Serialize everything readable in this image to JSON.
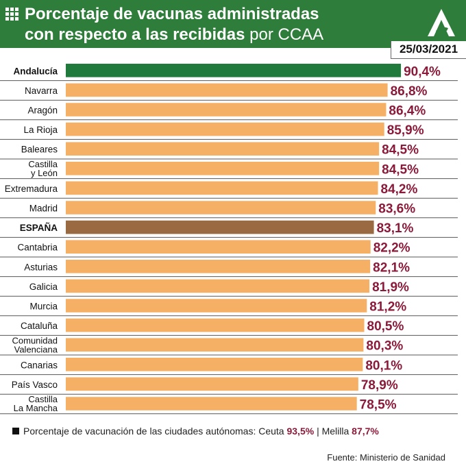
{
  "header": {
    "title_line1": "Porcentaje de vacunas administradas",
    "title_line2_bold": "con respecto a las recibidas",
    "title_line2_plain": "por CCAA",
    "date": "25/03/2021",
    "grid_icon": "grid-icon",
    "logo_icon": "junta-andalucia-logo-icon",
    "background_color": "#2e7d3a"
  },
  "chart_data": {
    "type": "bar",
    "orientation": "horizontal",
    "categories": [
      "Andalucía",
      "Navarra",
      "Aragón",
      "La Rioja",
      "Baleares",
      "Castilla y León",
      "Extremadura",
      "Madrid",
      "ESPAÑA",
      "Cantabria",
      "Asturias",
      "Galicia",
      "Murcia",
      "Cataluña",
      "Comunidad Valenciana",
      "Canarias",
      "País Vasco",
      "Castilla La Mancha"
    ],
    "values": [
      90.4,
      86.8,
      86.4,
      85.9,
      84.5,
      84.5,
      84.2,
      83.6,
      83.1,
      82.2,
      82.1,
      81.9,
      81.2,
      80.5,
      80.3,
      80.1,
      78.9,
      78.5
    ],
    "value_labels": [
      "90,4%",
      "86,8%",
      "86,4%",
      "85,9%",
      "84,5%",
      "84,5%",
      "84,2%",
      "83,6%",
      "83,1%",
      "82,2%",
      "82,1%",
      "81,9%",
      "81,2%",
      "80,5%",
      "80,3%",
      "80,1%",
      "78,9%",
      "78,5%"
    ],
    "category_lines": [
      [
        "Andalucía"
      ],
      [
        "Navarra"
      ],
      [
        "Aragón"
      ],
      [
        "La Rioja"
      ],
      [
        "Baleares"
      ],
      [
        "Castilla",
        "y León"
      ],
      [
        "Extremadura"
      ],
      [
        "Madrid"
      ],
      [
        "ESPAÑA"
      ],
      [
        "Cantabria"
      ],
      [
        "Asturias"
      ],
      [
        "Galicia"
      ],
      [
        "Murcia"
      ],
      [
        "Cataluña"
      ],
      [
        "Comunidad",
        "Valenciana"
      ],
      [
        "Canarias"
      ],
      [
        "País Vasco"
      ],
      [
        "Castilla",
        "La Mancha"
      ]
    ],
    "bold_categories": [
      "Andalucía",
      "ESPAÑA"
    ],
    "colors": {
      "default": "#f6b066",
      "highlight": "#1f7a3c",
      "national": "#9a6b42",
      "value_text": "#8b1a3a",
      "row_line": "#555555"
    },
    "bar_colors": [
      "#1f7a3c",
      "#f6b066",
      "#f6b066",
      "#f6b066",
      "#f6b066",
      "#f6b066",
      "#f6b066",
      "#f6b066",
      "#9a6b42",
      "#f6b066",
      "#f6b066",
      "#f6b066",
      "#f6b066",
      "#f6b066",
      "#f6b066",
      "#f6b066",
      "#f6b066",
      "#f6b066"
    ],
    "xlim": [
      0,
      100
    ],
    "xlabel": "",
    "ylabel": "",
    "grid": false,
    "legend": "none"
  },
  "footnote": {
    "text": "Porcentaje de vacunación de las ciudades autónomas: Ceuta",
    "ceuta_value": "93,5%",
    "separator": "| Melilla",
    "melilla_value": "87,7%"
  },
  "source": "Fuente: Ministerio de Sanidad"
}
